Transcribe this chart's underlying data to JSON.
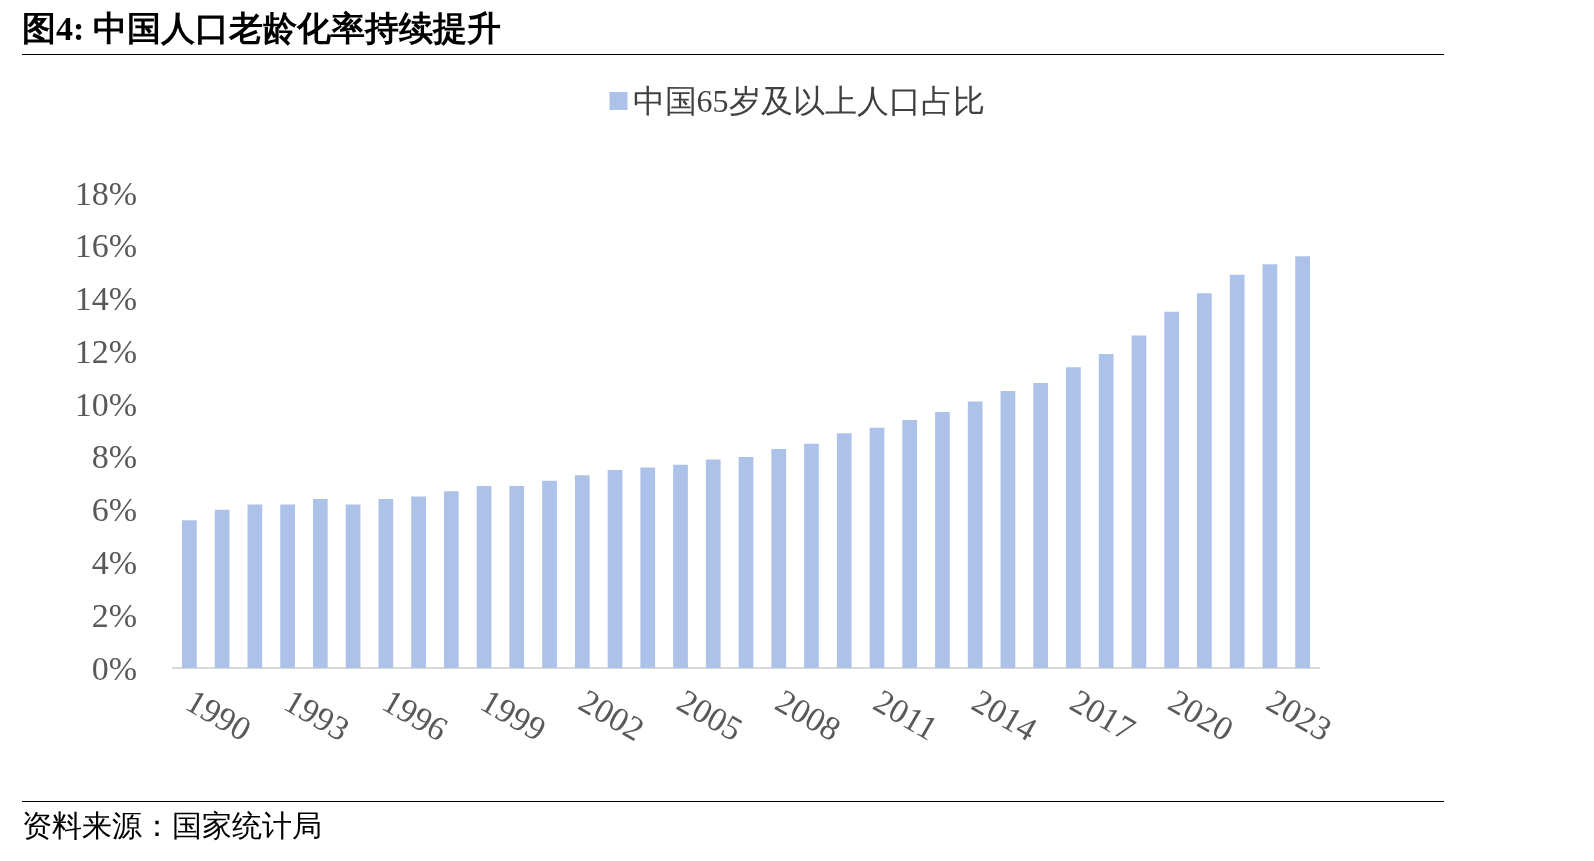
{
  "chart_data": {
    "type": "bar",
    "title": "图4:  中国人口老龄化率持续提升",
    "categories": [
      "1990",
      null,
      null,
      "1993",
      null,
      null,
      "1996",
      null,
      null,
      "1999",
      null,
      null,
      "2002",
      null,
      null,
      "2005",
      null,
      null,
      "2008",
      null,
      null,
      "2011",
      null,
      null,
      "2014",
      null,
      null,
      "2017",
      null,
      null,
      "2020",
      null,
      null,
      "2023",
      null
    ],
    "series": [
      {
        "name": "中国65岁及以上人口占比",
        "color": "#adc2e8",
        "values": [
          5.6,
          6.0,
          6.2,
          6.2,
          6.4,
          6.2,
          6.4,
          6.5,
          6.7,
          6.9,
          6.9,
          7.1,
          7.3,
          7.5,
          7.6,
          7.7,
          7.9,
          8.0,
          8.3,
          8.5,
          8.9,
          9.1,
          9.4,
          9.7,
          10.1,
          10.5,
          10.8,
          11.4,
          11.9,
          12.6,
          13.5,
          14.2,
          14.9,
          15.3,
          15.6
        ]
      }
    ],
    "ylim": [
      0,
      18
    ],
    "yticks": [
      {
        "value": 0,
        "label": "0%"
      },
      {
        "value": 2,
        "label": "2%"
      },
      {
        "value": 4,
        "label": "4%"
      },
      {
        "value": 6,
        "label": "6%"
      },
      {
        "value": 8,
        "label": "8%"
      },
      {
        "value": 10,
        "label": "10%"
      },
      {
        "value": 12,
        "label": "12%"
      },
      {
        "value": 14,
        "label": "14%"
      },
      {
        "value": 16,
        "label": "16%"
      },
      {
        "value": 18,
        "label": "18%"
      }
    ],
    "grid": false,
    "legend": "top",
    "annotations": [
      "资料来源：国家统计局"
    ]
  }
}
